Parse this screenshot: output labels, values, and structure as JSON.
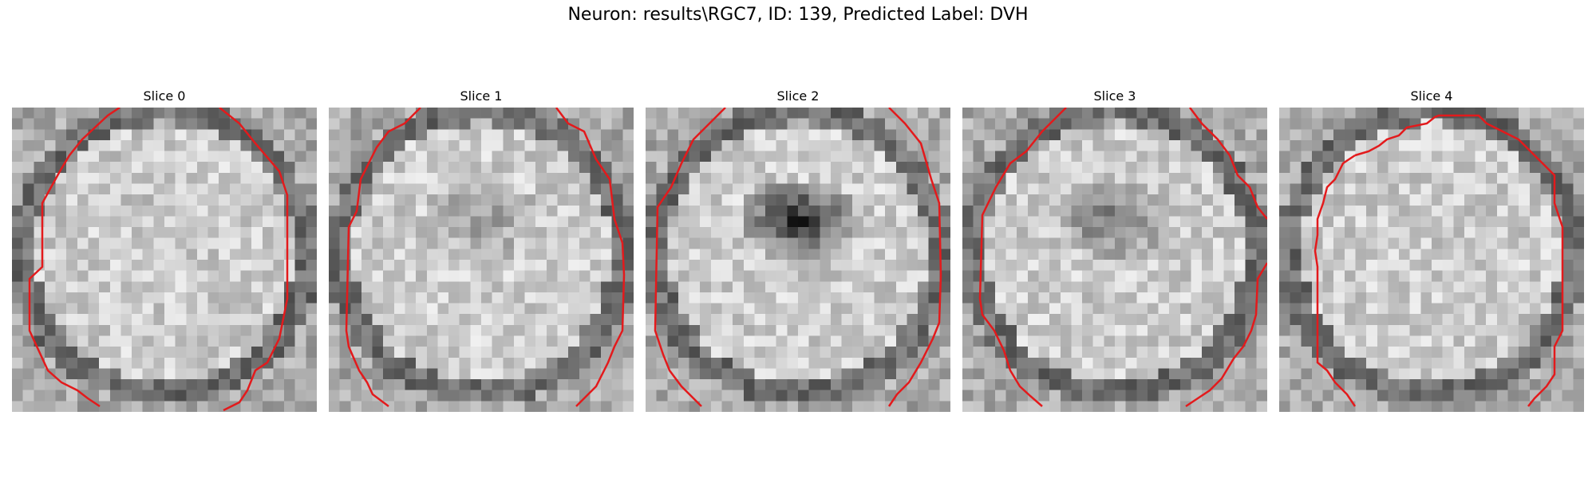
{
  "figure": {
    "title": "Neuron: results\\RGC7, ID: 139, Predicted Label: DVH"
  },
  "panels": [
    {
      "title": "Slice 0",
      "outline_color": "#e31a1c",
      "dark_center": 0.05
    },
    {
      "title": "Slice 1",
      "outline_color": "#e31a1c",
      "dark_center": 0.3
    },
    {
      "title": "Slice 2",
      "outline_color": "#e31a1c",
      "dark_center": 0.95
    },
    {
      "title": "Slice 3",
      "outline_color": "#e31a1c",
      "dark_center": 0.55
    },
    {
      "title": "Slice 4",
      "outline_color": "#e31a1c",
      "dark_center": 0.0
    }
  ]
}
